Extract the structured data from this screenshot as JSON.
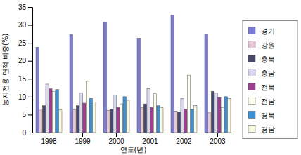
{
  "chart_data": {
    "type": "bar",
    "x_label": "연도(년)",
    "y_label": "농지전용 면적 비중(%)",
    "categories": [
      "1998",
      "1999",
      "2000",
      "2001",
      "2002",
      "2003"
    ],
    "series": [
      {
        "name": "경기",
        "color": "#7b7bd8",
        "values": [
          23.8,
          27.3,
          30.8,
          26.3,
          32.8,
          27.5
        ]
      },
      {
        "name": "강원",
        "color": "#e8c8d8",
        "values": [
          6.5,
          6.3,
          6.2,
          7,
          6,
          5.5
        ]
      },
      {
        "name": "충북",
        "color": "#484868",
        "values": [
          7.5,
          7.5,
          6.5,
          8,
          5.8,
          11.5
        ]
      },
      {
        "name": "충남",
        "color": "#d8d8f0",
        "values": [
          13.5,
          11,
          10.5,
          12.2,
          9.5,
          11
        ]
      },
      {
        "name": "전북",
        "color": "#9b3f8f",
        "values": [
          12.2,
          8.2,
          7,
          7,
          6.5,
          9.8
        ]
      },
      {
        "name": "전남",
        "color": "#fffff0",
        "values": [
          11.5,
          14.3,
          8,
          10.8,
          16,
          7
        ]
      },
      {
        "name": "경북",
        "color": "#3b8fd6",
        "values": [
          12,
          9.5,
          10,
          7.5,
          6.5,
          10
        ]
      },
      {
        "name": "경남",
        "color": "#f8f8e0",
        "values": [
          6.3,
          8.5,
          9,
          7,
          7.5,
          9.5
        ]
      }
    ],
    "ylim": [
      0,
      35
    ],
    "yticks": [
      0,
      5,
      10,
      15,
      20,
      25,
      30,
      35
    ],
    "grid": false,
    "legend": "right"
  }
}
